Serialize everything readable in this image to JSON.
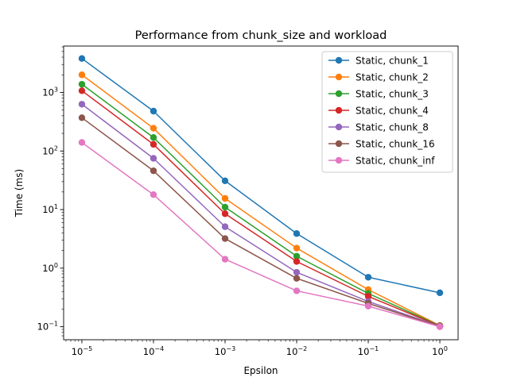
{
  "chart_data": {
    "type": "line",
    "title": "Performance from chunk_size and workload",
    "xlabel": "Epsilon",
    "ylabel": "Time (ms)",
    "xscale": "log",
    "yscale": "log",
    "x": [
      1e-05,
      0.0001,
      0.001,
      0.01,
      0.1,
      1
    ],
    "x_tick_labels": [
      {
        "base": "10",
        "exp": "−5"
      },
      {
        "base": "10",
        "exp": "−4"
      },
      {
        "base": "10",
        "exp": "−3"
      },
      {
        "base": "10",
        "exp": "−2"
      },
      {
        "base": "10",
        "exp": "−1"
      },
      {
        "base": "10",
        "exp": "0"
      }
    ],
    "y_ticks": [
      0.1,
      1,
      10,
      100,
      1000
    ],
    "y_tick_labels": [
      {
        "base": "10",
        "exp": "−1"
      },
      {
        "base": "10",
        "exp": "0"
      },
      {
        "base": "10",
        "exp": "1"
      },
      {
        "base": "10",
        "exp": "2"
      },
      {
        "base": "10",
        "exp": "3"
      }
    ],
    "legend_position": "top-right",
    "grid": false,
    "series": [
      {
        "name": "Static, chunk_1",
        "color": "#1f77b4",
        "values": [
          3800,
          480,
          31,
          3.9,
          0.7,
          0.38
        ]
      },
      {
        "name": "Static, chunk_2",
        "color": "#ff7f0e",
        "values": [
          2000,
          245,
          15.5,
          2.2,
          0.43,
          0.105
        ]
      },
      {
        "name": "Static, chunk_3",
        "color": "#2ca02c",
        "values": [
          1380,
          170,
          11,
          1.6,
          0.37,
          0.104
        ]
      },
      {
        "name": "Static, chunk_4",
        "color": "#d62728",
        "values": [
          1070,
          130,
          8.5,
          1.3,
          0.33,
          0.103
        ]
      },
      {
        "name": "Static, chunk_8",
        "color": "#9467bd",
        "values": [
          630,
          75,
          5.1,
          0.85,
          0.27,
          0.102
        ]
      },
      {
        "name": "Static, chunk_16",
        "color": "#8c564b",
        "values": [
          370,
          46,
          3.2,
          0.67,
          0.25,
          0.101
        ]
      },
      {
        "name": "Static, chunk_inf",
        "color": "#e377c2",
        "values": [
          140,
          18,
          1.42,
          0.41,
          0.225,
          0.1
        ]
      }
    ]
  }
}
